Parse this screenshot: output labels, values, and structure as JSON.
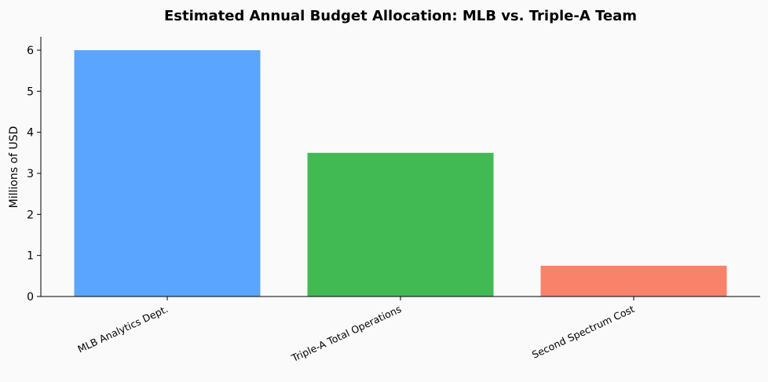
{
  "chart_data": {
    "type": "bar",
    "title": "Estimated Annual Budget Allocation: MLB vs. Triple-A Team",
    "xlabel": "",
    "ylabel": "Millions of USD",
    "categories": [
      "MLB Analytics Dept.",
      "Triple-A Total Operations",
      "Second Spectrum Cost"
    ],
    "values": [
      6.0,
      3.5,
      0.75
    ],
    "colors": [
      "#59a5ff",
      "#42ba53",
      "#f8826a"
    ],
    "ylim": [
      0,
      6.32
    ],
    "yticks": [
      0,
      1,
      2,
      3,
      4,
      5,
      6
    ],
    "grid": false,
    "legend": "none",
    "background": "#fafafa",
    "axis_color": "#000000"
  }
}
